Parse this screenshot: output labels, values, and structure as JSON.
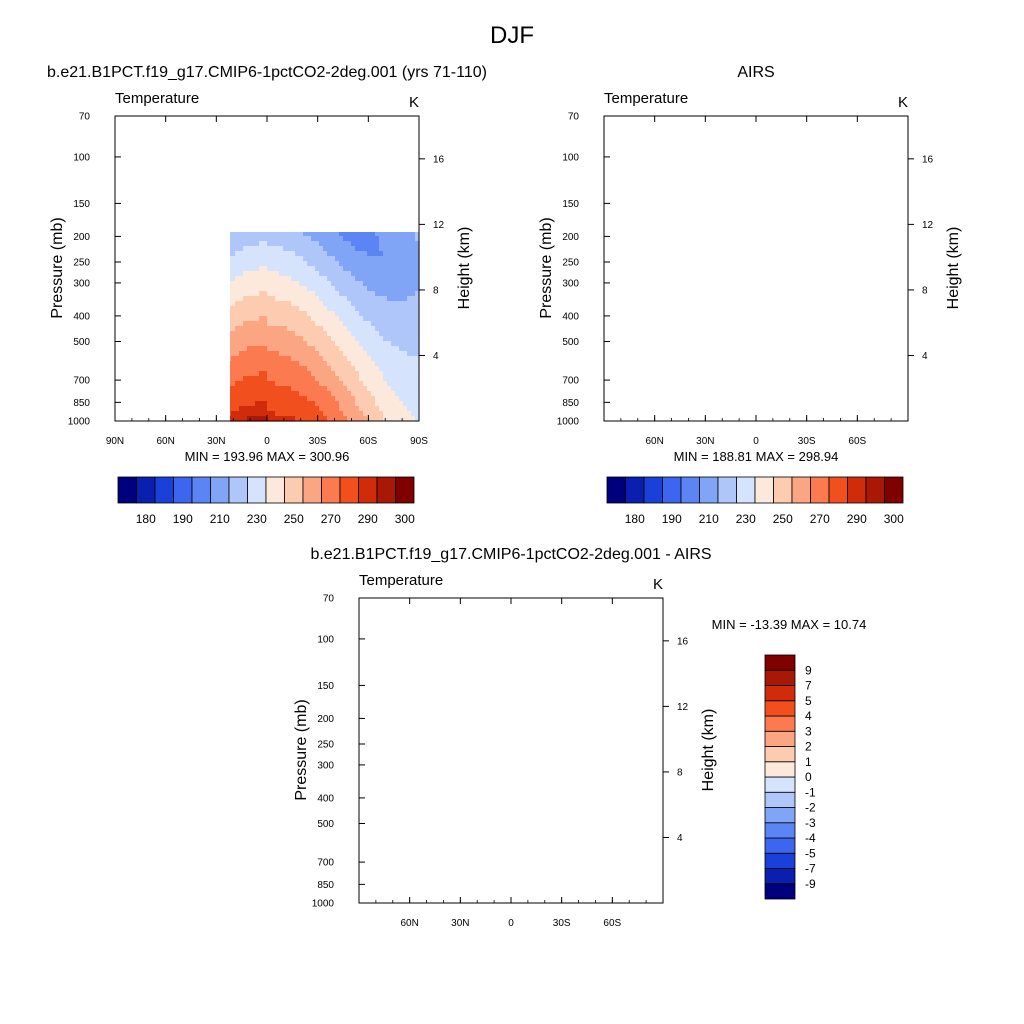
{
  "page": {
    "title": "DJF"
  },
  "chart_data": [
    {
      "type": "heatmap",
      "id": "model",
      "title": "b.e21.B1PCT.f19_g17.CMIP6-1pctCO2-2deg.001 (yrs 71-110)",
      "left_string": "Temperature",
      "right_string": "K",
      "ylabel": "Pressure (mb)",
      "ylabel_right": "Height (km)",
      "x_ticks": [
        "90N",
        "60N",
        "30N",
        "0",
        "30S",
        "60S",
        "90S"
      ],
      "x_tick_values": [
        90,
        60,
        30,
        0,
        -30,
        -60,
        -90
      ],
      "xlim": [
        90,
        -90
      ],
      "y_ticks": [
        "70",
        "100",
        "150",
        "200",
        "250",
        "300",
        "400",
        "500",
        "700",
        "850",
        "1000"
      ],
      "y_tick_values": [
        70,
        100,
        150,
        200,
        250,
        300,
        400,
        500,
        700,
        850,
        1000
      ],
      "ylim": [
        1000,
        70
      ],
      "y_scale": "log",
      "height_ticks": [
        "4",
        "8",
        "12",
        "16"
      ],
      "height_tick_values": [
        4,
        8,
        12,
        16
      ],
      "stats": "MIN = 193.96  MAX = 300.96",
      "min": 193.96,
      "max": 300.96,
      "levels": [
        180,
        185,
        190,
        200,
        210,
        220,
        230,
        240,
        250,
        260,
        270,
        280,
        290,
        295,
        300
      ],
      "colors": [
        "#00007f",
        "#0a1fb0",
        "#1941d9",
        "#3d66f0",
        "#5b84f5",
        "#80a5f7",
        "#aec6fa",
        "#d5e3fc",
        "#fde8dc",
        "#fdccb0",
        "#fca583",
        "#fb7a50",
        "#f24f1f",
        "#d02c0a",
        "#a81804",
        "#800000"
      ],
      "colorbar_labels": [
        "180",
        "190",
        "210",
        "230",
        "250",
        "270",
        "290",
        "300"
      ]
    },
    {
      "type": "heatmap",
      "id": "obs",
      "title": "AIRS",
      "left_string": "Temperature",
      "right_string": "K",
      "ylabel": "Pressure (mb)",
      "ylabel_right": "Height (km)",
      "x_ticks": [
        "60N",
        "30N",
        "0",
        "30S",
        "60S"
      ],
      "x_tick_values": [
        60,
        30,
        0,
        -30,
        -60
      ],
      "xlim": [
        90,
        -90
      ],
      "y_ticks": [
        "70",
        "100",
        "150",
        "200",
        "250",
        "300",
        "400",
        "500",
        "700",
        "850",
        "1000"
      ],
      "y_tick_values": [
        70,
        100,
        150,
        200,
        250,
        300,
        400,
        500,
        700,
        850,
        1000
      ],
      "ylim": [
        1000,
        70
      ],
      "y_scale": "log",
      "height_ticks": [
        "4",
        "8",
        "12",
        "16"
      ],
      "height_tick_values": [
        4,
        8,
        12,
        16
      ],
      "stats": "MIN = 188.81  MAX = 298.94",
      "min": 188.81,
      "max": 298.94,
      "levels": [
        180,
        185,
        190,
        200,
        210,
        220,
        230,
        240,
        250,
        260,
        270,
        280,
        290,
        295,
        300
      ],
      "colors": [
        "#00007f",
        "#0a1fb0",
        "#1941d9",
        "#3d66f0",
        "#5b84f5",
        "#80a5f7",
        "#aec6fa",
        "#d5e3fc",
        "#fde8dc",
        "#fdccb0",
        "#fca583",
        "#fb7a50",
        "#f24f1f",
        "#d02c0a",
        "#a81804",
        "#800000"
      ],
      "colorbar_labels": [
        "180",
        "190",
        "210",
        "230",
        "250",
        "270",
        "290",
        "300"
      ]
    },
    {
      "type": "heatmap",
      "id": "diff",
      "title": "b.e21.B1PCT.f19_g17.CMIP6-1pctCO2-2deg.001 - AIRS",
      "left_string": "Temperature",
      "right_string": "K",
      "ylabel": "Pressure (mb)",
      "ylabel_right": "Height (km)",
      "x_ticks": [
        "60N",
        "30N",
        "0",
        "30S",
        "60S"
      ],
      "x_tick_values": [
        60,
        30,
        0,
        -30,
        -60
      ],
      "xlim": [
        90,
        -90
      ],
      "y_ticks": [
        "70",
        "100",
        "150",
        "200",
        "250",
        "300",
        "400",
        "500",
        "700",
        "850",
        "1000"
      ],
      "y_tick_values": [
        70,
        100,
        150,
        200,
        250,
        300,
        400,
        500,
        700,
        850,
        1000
      ],
      "ylim": [
        1000,
        70
      ],
      "y_scale": "log",
      "height_ticks": [
        "4",
        "8",
        "12",
        "16"
      ],
      "height_tick_values": [
        4,
        8,
        12,
        16
      ],
      "stats": "MIN = -13.39  MAX =  10.74",
      "min": -13.39,
      "max": 10.74,
      "levels": [
        -9,
        -7,
        -5,
        -4,
        -3,
        -2,
        -1,
        0,
        1,
        2,
        3,
        4,
        5,
        7,
        9
      ],
      "colors": [
        "#00007f",
        "#0a1fb0",
        "#1941d9",
        "#3d66f0",
        "#5b84f5",
        "#80a5f7",
        "#aec6fa",
        "#d5e3fc",
        "#fde8dc",
        "#fdccb0",
        "#fca583",
        "#fb7a50",
        "#f24f1f",
        "#d02c0a",
        "#a81804",
        "#800000"
      ],
      "colorbar_labels": [
        "-9",
        "-7",
        "-5",
        "-4",
        "-3",
        "-2",
        "-1",
        "0",
        "1",
        "2",
        "3",
        "4",
        "5",
        "7",
        "9"
      ]
    }
  ]
}
